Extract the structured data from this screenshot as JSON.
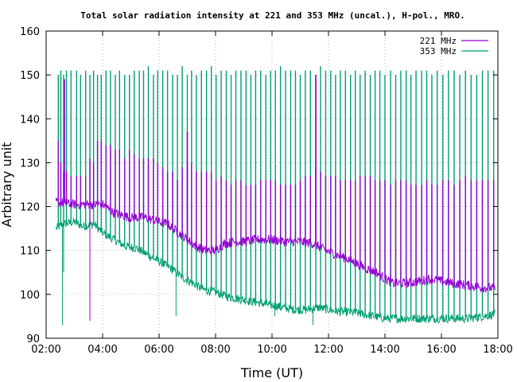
{
  "chart_data": {
    "type": "line",
    "title": "Total solar radiation intensity at 221 and 353 MHz (uncal.), H-pol., MRO.",
    "xlabel": "Time (UT)",
    "ylabel": "Arbitrary unit",
    "xlim": [
      2.0,
      18.0
    ],
    "ylim": [
      90,
      160
    ],
    "xticks": [
      2,
      4,
      6,
      8,
      10,
      12,
      14,
      16,
      18
    ],
    "xtick_labels": [
      "02:00",
      "04:00",
      "06:00",
      "08:00",
      "10:00",
      "12:00",
      "14:00",
      "16:00",
      "18:00"
    ],
    "yticks": [
      90,
      100,
      110,
      120,
      130,
      140,
      150,
      160
    ],
    "ytick_labels": [
      "90",
      "100",
      "110",
      "120",
      "130",
      "140",
      "150",
      "160"
    ],
    "grid": true,
    "legend_position": "top-right",
    "series": [
      {
        "name": "221 MHz",
        "color": "#9400d3",
        "baseline": [
          [
            2.35,
            121
          ],
          [
            3.0,
            120.5
          ],
          [
            3.5,
            120.5
          ],
          [
            4.0,
            120.5
          ],
          [
            4.4,
            118.5
          ],
          [
            5.0,
            117.5
          ],
          [
            5.5,
            117.5
          ],
          [
            6.0,
            116.5
          ],
          [
            6.3,
            116
          ],
          [
            6.6,
            114.5
          ],
          [
            7.0,
            112.5
          ],
          [
            7.3,
            111
          ],
          [
            7.6,
            110
          ],
          [
            8.0,
            110
          ],
          [
            8.3,
            111.5
          ],
          [
            8.7,
            112
          ],
          [
            9.0,
            112
          ],
          [
            9.5,
            112.5
          ],
          [
            10.0,
            112.5
          ],
          [
            10.5,
            112
          ],
          [
            11.0,
            112
          ],
          [
            11.5,
            111.5
          ],
          [
            11.9,
            110
          ],
          [
            12.3,
            109
          ],
          [
            12.7,
            108
          ],
          [
            13.0,
            107
          ],
          [
            13.3,
            106
          ],
          [
            13.7,
            105
          ],
          [
            14.0,
            103.5
          ],
          [
            14.3,
            102.5
          ],
          [
            14.8,
            102.5
          ],
          [
            15.2,
            103
          ],
          [
            15.6,
            103.5
          ],
          [
            16.0,
            103
          ],
          [
            16.4,
            102.5
          ],
          [
            17.0,
            102
          ],
          [
            17.5,
            101.5
          ],
          [
            17.9,
            101.5
          ]
        ],
        "spikes": [
          [
            2.43,
            135
          ],
          [
            2.52,
            130
          ],
          [
            2.62,
            128
          ],
          [
            2.72,
            128
          ],
          [
            2.88,
            127
          ],
          [
            3.08,
            127
          ],
          [
            3.22,
            127
          ],
          [
            3.4,
            127
          ],
          [
            3.55,
            131
          ],
          [
            3.68,
            130
          ],
          [
            3.82,
            135
          ],
          [
            3.95,
            135
          ],
          [
            4.12,
            134
          ],
          [
            4.28,
            134
          ],
          [
            4.45,
            133
          ],
          [
            4.6,
            133
          ],
          [
            4.78,
            131
          ],
          [
            4.95,
            133
          ],
          [
            5.12,
            132
          ],
          [
            5.3,
            131
          ],
          [
            5.45,
            131
          ],
          [
            5.62,
            131
          ],
          [
            5.8,
            131
          ],
          [
            5.95,
            130
          ],
          [
            6.13,
            129
          ],
          [
            6.3,
            128
          ],
          [
            6.48,
            128
          ],
          [
            6.65,
            126
          ],
          [
            6.82,
            129
          ],
          [
            7.0,
            130
          ],
          [
            7.15,
            130
          ],
          [
            7.32,
            128
          ],
          [
            7.5,
            128
          ],
          [
            7.68,
            128
          ],
          [
            7.85,
            128
          ],
          [
            8.02,
            126
          ],
          [
            8.2,
            127
          ],
          [
            8.38,
            126
          ],
          [
            8.55,
            125
          ],
          [
            8.72,
            126
          ],
          [
            8.9,
            126
          ],
          [
            9.08,
            125
          ],
          [
            9.25,
            125
          ],
          [
            9.42,
            125
          ],
          [
            9.6,
            126
          ],
          [
            9.78,
            126
          ],
          [
            9.95,
            126
          ],
          [
            10.12,
            126
          ],
          [
            10.3,
            125
          ],
          [
            10.48,
            125
          ],
          [
            10.66,
            125
          ],
          [
            10.83,
            125
          ],
          [
            11.0,
            126
          ],
          [
            11.18,
            127
          ],
          [
            11.36,
            127
          ],
          [
            11.55,
            129
          ],
          [
            11.72,
            128
          ],
          [
            11.9,
            127
          ],
          [
            12.08,
            127
          ],
          [
            12.25,
            127
          ],
          [
            12.42,
            126
          ],
          [
            12.6,
            126
          ],
          [
            12.78,
            126
          ],
          [
            12.95,
            126
          ],
          [
            13.12,
            127
          ],
          [
            13.3,
            127
          ],
          [
            13.48,
            127
          ],
          [
            13.65,
            126
          ],
          [
            13.82,
            126
          ],
          [
            14.0,
            126
          ],
          [
            14.2,
            125
          ],
          [
            14.38,
            126
          ],
          [
            14.56,
            126
          ],
          [
            14.75,
            126
          ],
          [
            14.92,
            125
          ],
          [
            15.1,
            125
          ],
          [
            15.3,
            125
          ],
          [
            15.48,
            126
          ],
          [
            15.66,
            125
          ],
          [
            15.85,
            125
          ],
          [
            16.05,
            126
          ],
          [
            16.25,
            126
          ],
          [
            16.45,
            125
          ],
          [
            16.65,
            126
          ],
          [
            16.85,
            127
          ],
          [
            17.05,
            126
          ],
          [
            17.25,
            126
          ],
          [
            17.45,
            126
          ],
          [
            17.65,
            126
          ],
          [
            17.85,
            126
          ]
        ],
        "tall_spikes": [
          [
            2.65,
            149
          ],
          [
            11.55,
            150
          ],
          [
            7.0,
            137
          ]
        ],
        "dips": [
          [
            3.55,
            94
          ]
        ]
      },
      {
        "name": "353 MHz",
        "color": "#009e73",
        "baseline": [
          [
            2.35,
            115
          ],
          [
            2.6,
            116
          ],
          [
            3.0,
            116.5
          ],
          [
            3.3,
            115.5
          ],
          [
            3.7,
            116
          ],
          [
            4.0,
            114
          ],
          [
            4.4,
            112.5
          ],
          [
            4.8,
            111
          ],
          [
            5.2,
            110.5
          ],
          [
            5.6,
            109
          ],
          [
            6.0,
            107.5
          ],
          [
            6.4,
            106
          ],
          [
            6.8,
            104
          ],
          [
            7.2,
            102.5
          ],
          [
            7.6,
            101
          ],
          [
            8.0,
            100.5
          ],
          [
            8.4,
            99.5
          ],
          [
            8.8,
            99
          ],
          [
            9.2,
            98.5
          ],
          [
            9.6,
            98
          ],
          [
            10.0,
            97.5
          ],
          [
            10.4,
            97
          ],
          [
            10.8,
            96.5
          ],
          [
            11.2,
            96.5
          ],
          [
            11.6,
            97
          ],
          [
            12.0,
            96.5
          ],
          [
            12.4,
            96
          ],
          [
            12.8,
            96
          ],
          [
            13.2,
            95.5
          ],
          [
            13.6,
            95
          ],
          [
            14.0,
            94.5
          ],
          [
            14.6,
            94.5
          ],
          [
            15.2,
            94.5
          ],
          [
            15.8,
            94.5
          ],
          [
            16.4,
            94.5
          ],
          [
            17.0,
            94.5
          ],
          [
            17.5,
            95
          ],
          [
            17.9,
            95.5
          ]
        ],
        "spikes": [
          [
            2.43,
            150
          ],
          [
            2.52,
            151
          ],
          [
            2.62,
            150
          ],
          [
            2.72,
            151
          ],
          [
            2.88,
            151
          ],
          [
            3.08,
            151
          ],
          [
            3.22,
            150
          ],
          [
            3.4,
            151
          ],
          [
            3.55,
            150
          ],
          [
            3.68,
            151
          ],
          [
            3.82,
            150
          ],
          [
            3.95,
            150
          ],
          [
            4.12,
            151
          ],
          [
            4.28,
            151
          ],
          [
            4.45,
            150
          ],
          [
            4.6,
            151
          ],
          [
            4.78,
            150
          ],
          [
            4.95,
            150
          ],
          [
            5.12,
            151
          ],
          [
            5.3,
            151
          ],
          [
            5.45,
            151
          ],
          [
            5.62,
            152
          ],
          [
            5.8,
            150
          ],
          [
            5.95,
            151
          ],
          [
            6.13,
            151
          ],
          [
            6.3,
            151
          ],
          [
            6.48,
            150
          ],
          [
            6.65,
            150
          ],
          [
            6.82,
            152
          ],
          [
            7.0,
            150
          ],
          [
            7.15,
            151
          ],
          [
            7.32,
            150
          ],
          [
            7.5,
            151
          ],
          [
            7.68,
            151
          ],
          [
            7.85,
            152
          ],
          [
            8.02,
            150
          ],
          [
            8.2,
            151
          ],
          [
            8.38,
            151
          ],
          [
            8.55,
            150
          ],
          [
            8.72,
            151
          ],
          [
            8.9,
            151
          ],
          [
            9.08,
            151
          ],
          [
            9.25,
            150
          ],
          [
            9.42,
            151
          ],
          [
            9.6,
            151
          ],
          [
            9.78,
            150
          ],
          [
            9.95,
            151
          ],
          [
            10.12,
            151
          ],
          [
            10.3,
            152
          ],
          [
            10.48,
            151
          ],
          [
            10.66,
            151
          ],
          [
            10.83,
            151
          ],
          [
            11.0,
            150
          ],
          [
            11.18,
            151
          ],
          [
            11.36,
            151
          ],
          [
            11.55,
            150
          ],
          [
            11.72,
            152
          ],
          [
            11.9,
            151
          ],
          [
            12.08,
            151
          ],
          [
            12.25,
            150
          ],
          [
            12.42,
            151
          ],
          [
            12.6,
            151
          ],
          [
            12.78,
            150
          ],
          [
            12.95,
            151
          ],
          [
            13.12,
            150
          ],
          [
            13.3,
            151
          ],
          [
            13.48,
            150
          ],
          [
            13.65,
            151
          ],
          [
            13.82,
            151
          ],
          [
            14.0,
            150
          ],
          [
            14.2,
            151
          ],
          [
            14.38,
            150
          ],
          [
            14.56,
            151
          ],
          [
            14.75,
            151
          ],
          [
            14.92,
            150
          ],
          [
            15.1,
            151
          ],
          [
            15.3,
            151
          ],
          [
            15.48,
            151
          ],
          [
            15.66,
            150
          ],
          [
            15.85,
            151
          ],
          [
            16.05,
            150
          ],
          [
            16.25,
            151
          ],
          [
            16.45,
            151
          ],
          [
            16.65,
            150
          ],
          [
            16.85,
            151
          ],
          [
            17.05,
            150
          ],
          [
            17.25,
            150
          ],
          [
            17.45,
            151
          ],
          [
            17.65,
            151
          ],
          [
            17.85,
            151
          ]
        ],
        "dips": [
          [
            2.58,
            93
          ],
          [
            2.62,
            105
          ],
          [
            6.6,
            95
          ],
          [
            10.1,
            95
          ],
          [
            11.45,
            93
          ]
        ]
      }
    ]
  }
}
